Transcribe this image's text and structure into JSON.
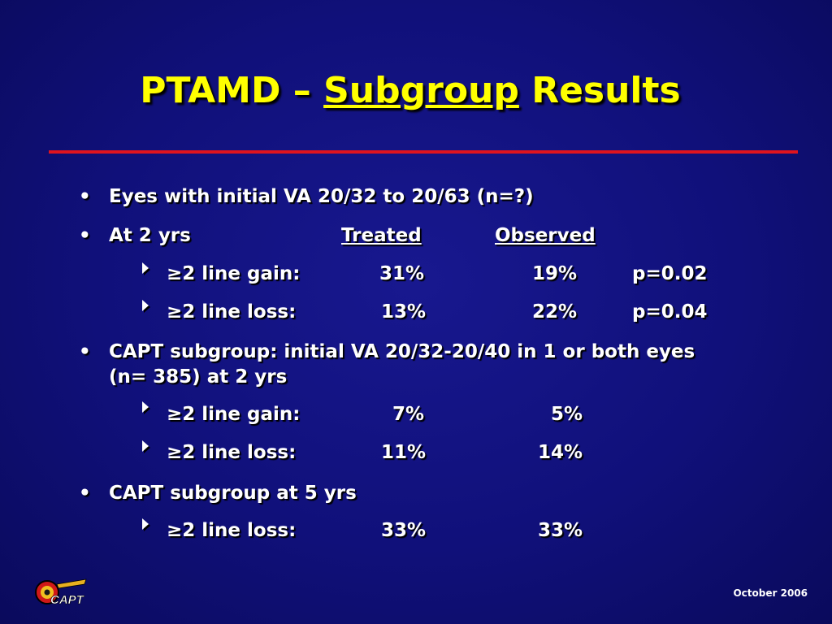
{
  "slide": {
    "title": {
      "prefix": "PTAMD – ",
      "underlined": "Subgroup",
      "suffix": " Results"
    },
    "bullets": [
      {
        "marker": "•",
        "text": "Eyes with initial VA 20/32 to 20/63 (n=?)"
      },
      {
        "marker": "•",
        "label": "At 2 yrs",
        "col_treated": "Treated",
        "col_observed": "Observed"
      },
      {
        "marker": "•",
        "line1": "CAPT subgroup: initial VA 20/32-20/40 in 1 or both eyes",
        "line2": "(n= 385) at 2 yrs"
      },
      {
        "marker": "•",
        "text": "CAPT subgroup at 5 yrs"
      }
    ],
    "rows_2yrs": [
      {
        "label": "≥2 line gain:",
        "treated": "31%",
        "observed": "19%",
        "p": "p=0.02"
      },
      {
        "label": "≥2 line loss:",
        "treated": "13%",
        "observed": "22%",
        "p": "p=0.04"
      }
    ],
    "rows_capt_2yrs": [
      {
        "label": "≥2 line gain:",
        "treated": "7%",
        "observed": "5%"
      },
      {
        "label": "≥2 line loss:",
        "treated": "11%",
        "observed": "14%"
      }
    ],
    "rows_capt_5yrs": [
      {
        "label": "≥2 line loss:",
        "treated": "33%",
        "observed": "33%"
      }
    ],
    "footer": "October 2006",
    "logo_text": "CAPT"
  },
  "colors": {
    "background": "#10107a",
    "title": "#ffff00",
    "rule": "#e0141e",
    "text": "#ffffff"
  }
}
